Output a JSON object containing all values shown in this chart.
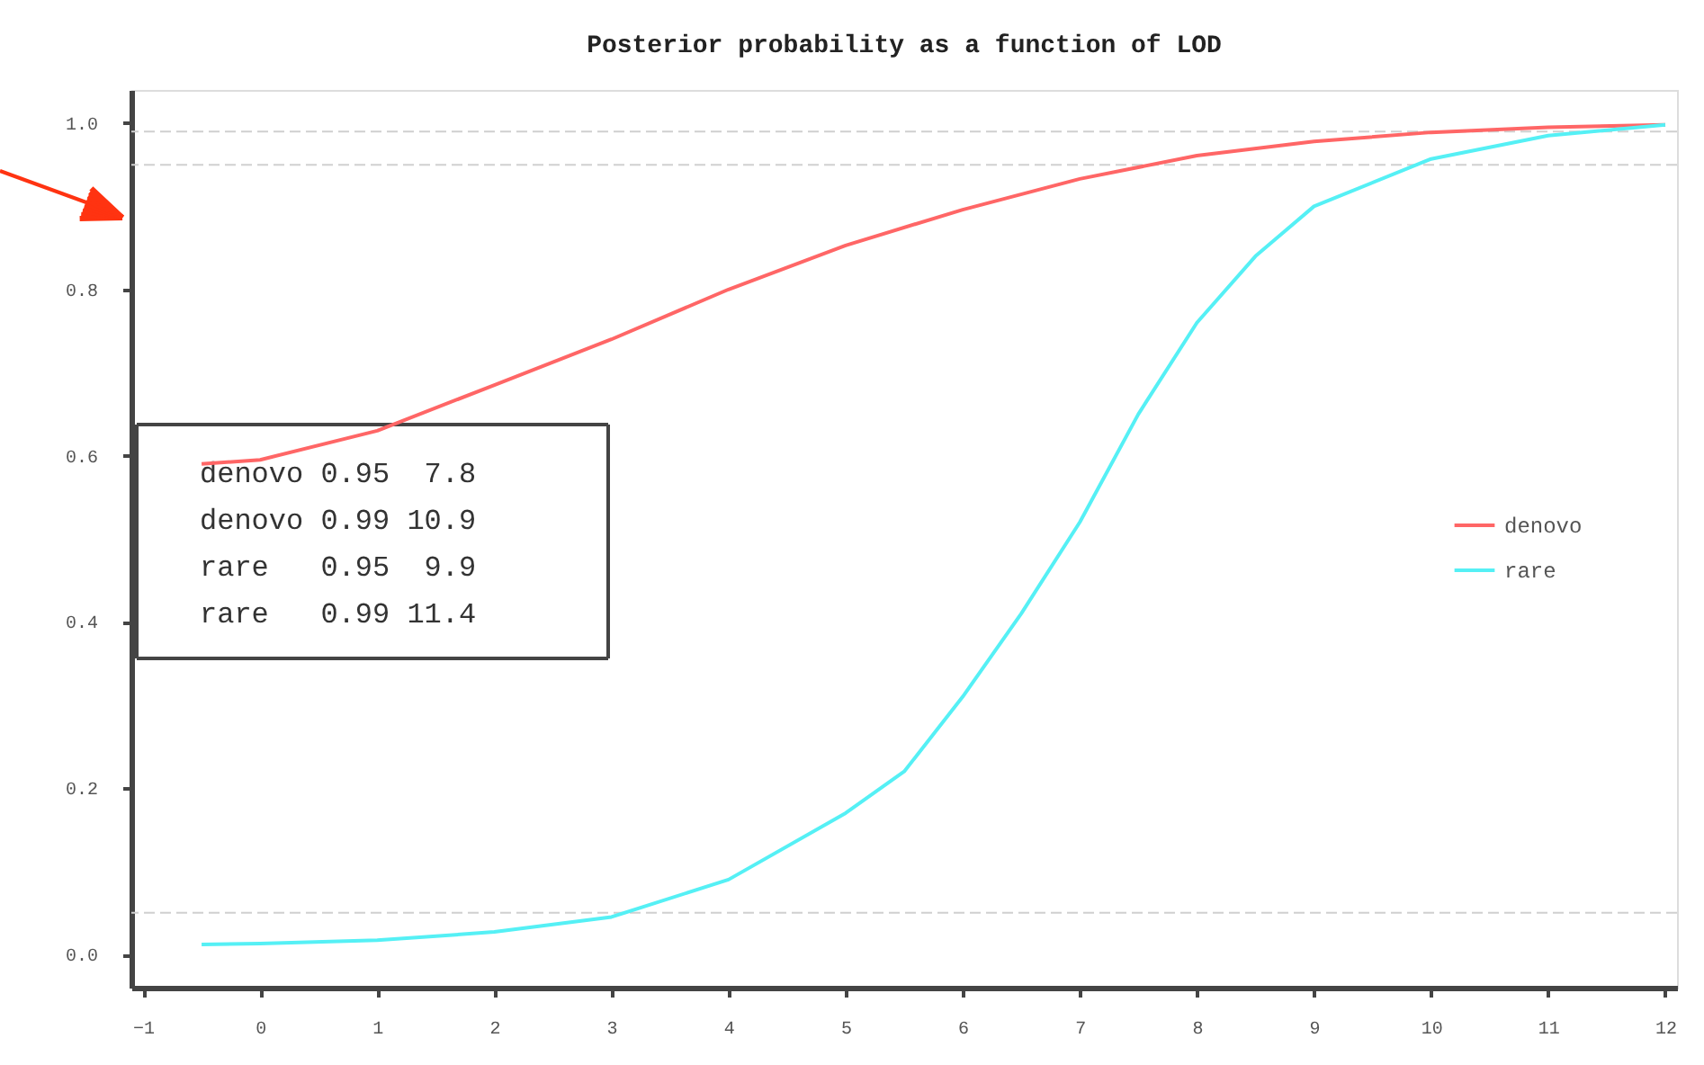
{
  "chart_data": {
    "type": "line",
    "title": "Posterior probability as a function of LOD",
    "x": [
      -0.5,
      0,
      1,
      2,
      3,
      4,
      5,
      6,
      7,
      8,
      9,
      10,
      11,
      12
    ],
    "series": [
      {
        "name": "denovo",
        "color": "#ff6666",
        "values": [
          0.59,
          0.595,
          0.63,
          0.685,
          0.74,
          0.8,
          0.853,
          0.896,
          0.933,
          0.961,
          0.978,
          0.989,
          0.995,
          0.998
        ]
      },
      {
        "name": "rare",
        "color": "#55f0f5",
        "x": [
          -0.5,
          0,
          1,
          2,
          3,
          4,
          5,
          5.5,
          6,
          6.5,
          7,
          7.5,
          8,
          8.5,
          9,
          10,
          11,
          12
        ],
        "values": [
          0.012,
          0.013,
          0.017,
          0.027,
          0.045,
          0.09,
          0.17,
          0.22,
          0.31,
          0.41,
          0.52,
          0.65,
          0.76,
          0.84,
          0.9,
          0.957,
          0.985,
          0.998
        ]
      }
    ],
    "xlim": [
      -1.1,
      12.1
    ],
    "xticks": [
      -1,
      0,
      1,
      2,
      3,
      4,
      5,
      6,
      7,
      8,
      9,
      10,
      11,
      12
    ],
    "ylim": [
      -0.04,
      1.04
    ],
    "yticks": [
      {
        "value": 0,
        "label": "0.0"
      },
      {
        "value": 0.2,
        "label": "0.2"
      },
      {
        "value": 0.4,
        "label": "0.4"
      },
      {
        "value": 0.6,
        "label": "0.6"
      },
      {
        "value": 0.8,
        "label": "0.8"
      },
      {
        "value": 1,
        "label": "1.0"
      }
    ],
    "ref_lines": [
      {
        "axis": "y",
        "value": 0.99,
        "color": "#d0d0d0",
        "line_style": "dashed"
      },
      {
        "axis": "y",
        "value": 0.95,
        "color": "#d0d0d0",
        "line_style": "dashed"
      },
      {
        "axis": "y",
        "value": 0.05,
        "color": "#d0d0d0",
        "line_style": "dashed"
      }
    ],
    "annotations": [
      "denovo 0.95  7.8",
      "denovo 0.99 10.9",
      "rare   0.95  9.9",
      "rare   0.99 11.4"
    ],
    "legend": "right",
    "grid": false,
    "marker": "none",
    "line_style": "solid"
  }
}
